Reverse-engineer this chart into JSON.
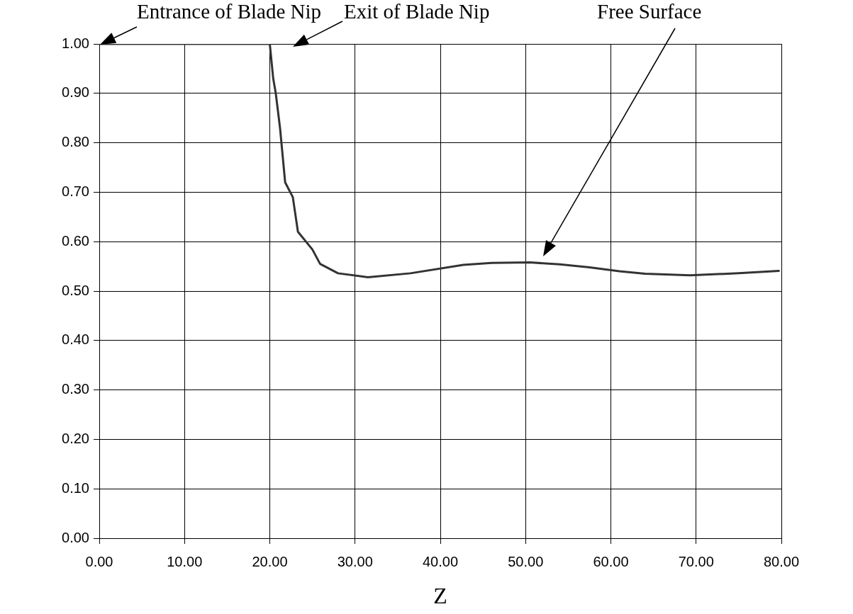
{
  "chart_data": {
    "type": "line",
    "xlabel": "Z",
    "x": [
      0,
      20,
      20.4,
      20.7,
      21.2,
      21.8,
      22.7,
      23.3,
      25.0,
      25.9,
      28.0,
      31.5,
      36.5,
      42.7,
      46.0,
      50.5,
      54.0,
      57.5,
      61.0,
      64.0,
      69.3,
      75.0,
      79.7
    ],
    "series": [
      {
        "color": "#333333",
        "values": [
          1.0,
          1.0,
          0.93,
          0.9,
          0.83,
          0.72,
          0.69,
          0.62,
          0.584,
          0.555,
          0.536,
          0.528,
          0.536,
          0.553,
          0.557,
          0.558,
          0.554,
          0.548,
          0.54,
          0.535,
          0.532,
          0.536,
          0.541
        ]
      }
    ],
    "xlim": [
      0,
      80
    ],
    "xticks": [
      {
        "value": 0,
        "label": "0.00"
      },
      {
        "value": 10,
        "label": "10.00"
      },
      {
        "value": 20,
        "label": "20.00"
      },
      {
        "value": 30,
        "label": "30.00"
      },
      {
        "value": 40,
        "label": "40.00"
      },
      {
        "value": 50,
        "label": "50.00"
      },
      {
        "value": 60,
        "label": "60.00"
      },
      {
        "value": 70,
        "label": "70.00"
      },
      {
        "value": 80,
        "label": "80.00"
      }
    ],
    "ylim": [
      0,
      1
    ],
    "yticks": [
      {
        "value": 0,
        "label": "0.00"
      },
      {
        "value": 0.1,
        "label": "0.10"
      },
      {
        "value": 0.2,
        "label": "0.20"
      },
      {
        "value": 0.3,
        "label": "0.30"
      },
      {
        "value": 0.4,
        "label": "0.40"
      },
      {
        "value": 0.5,
        "label": "0.50"
      },
      {
        "value": 0.6,
        "label": "0.60"
      },
      {
        "value": 0.7,
        "label": "0.70"
      },
      {
        "value": 0.8,
        "label": "0.80"
      },
      {
        "value": 0.9,
        "label": "0.90"
      },
      {
        "value": 1,
        "label": "1.00"
      }
    ],
    "grid": true,
    "legend": false,
    "marker": "none",
    "line_style": "solid",
    "annotations": [
      {
        "text": "Entrance of Blade Nip",
        "x": 0,
        "y": 1.0
      },
      "Exit of Blade Nip",
      "Free Surface"
    ]
  }
}
